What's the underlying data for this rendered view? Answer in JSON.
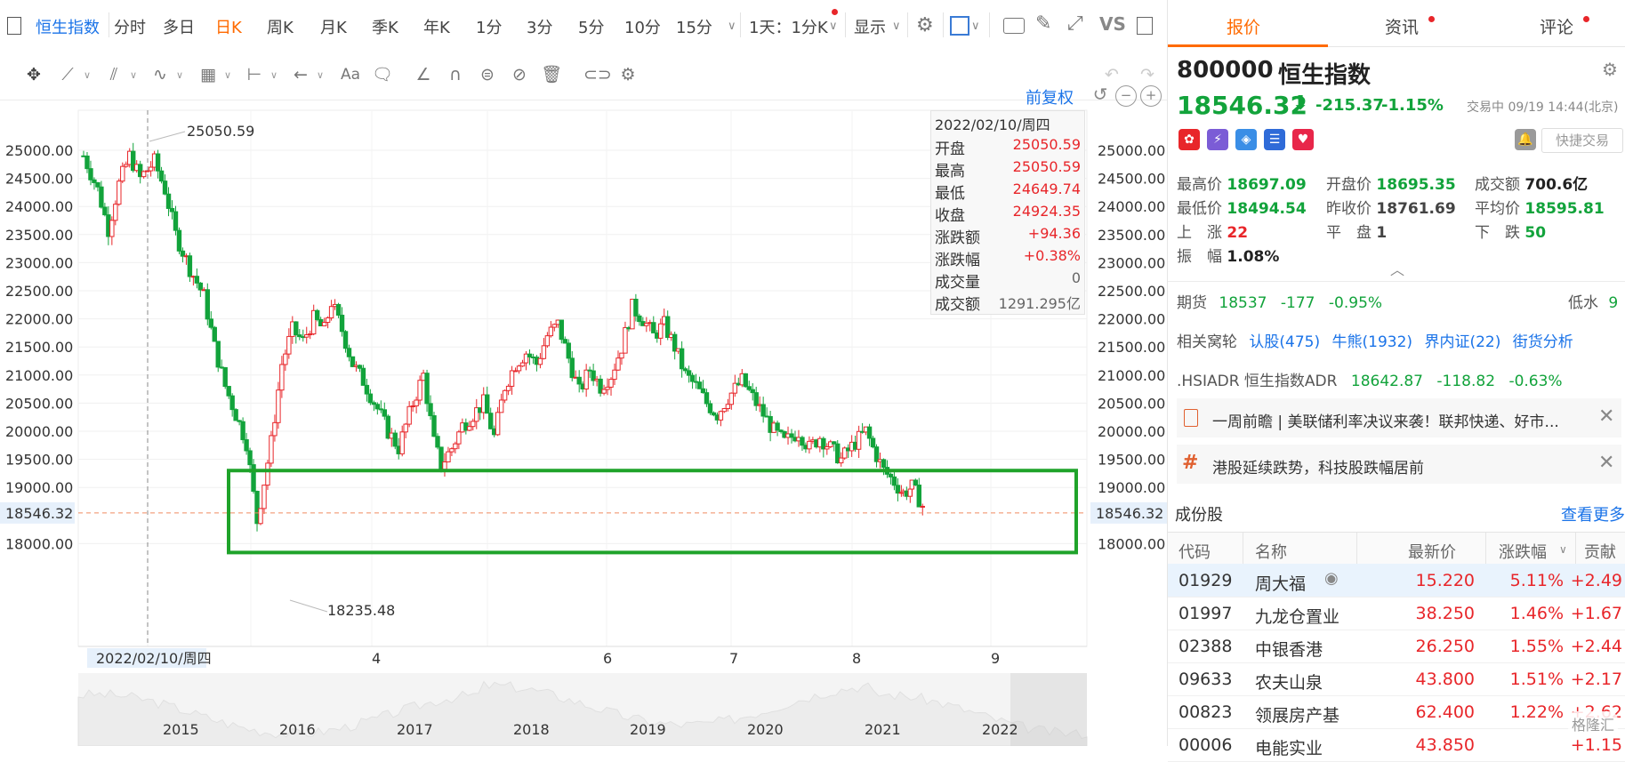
{
  "toolbar": {
    "brand": "恒生指数",
    "periods": [
      "分时",
      "多日",
      "日K",
      "周K",
      "月K",
      "季K",
      "年K",
      "1分",
      "3分",
      "5分",
      "10分",
      "15分"
    ],
    "selected": "日K",
    "multi": "1天：1分K",
    "display": "显示",
    "vs": "VS"
  },
  "drawbar": {
    "text_tool": "Aa"
  },
  "chart": {
    "fuquan": "前复权",
    "y_ticks": [
      "25000.00",
      "24500.00",
      "24000.00",
      "23500.00",
      "23000.00",
      "22500.00",
      "22000.00",
      "21500.00",
      "21000.00",
      "20500.00",
      "20000.00",
      "19500.00",
      "19000.00",
      "18000.00"
    ],
    "current_price_label": "18546.32",
    "high_label": "25050.59",
    "low_label": "18235.48",
    "x_ticks": [
      "4",
      "6",
      "7",
      "8",
      "9"
    ],
    "crosshair_date": "2022/02/10/周四",
    "mini_years": [
      "2015",
      "2016",
      "2017",
      "2018",
      "2019",
      "2020",
      "2021",
      "2022"
    ],
    "colors": {
      "up": "#e8262a",
      "down": "#12a33b",
      "box": "#1fa32a"
    }
  },
  "chart_data": {
    "type": "candlestick",
    "title": "恒生指数",
    "ylim": [
      17700,
      25300
    ],
    "x_ticks": [
      "4",
      "6",
      "7",
      "8",
      "9"
    ],
    "last_price": 18546.32,
    "period_high": 25050.59,
    "period_low": 18235.48,
    "range_box": [
      18000,
      19300
    ]
  },
  "infobox": {
    "date": "2022/02/10/周四",
    "rows": [
      {
        "k": "开盘",
        "v": "25050.59"
      },
      {
        "k": "最高",
        "v": "25050.59"
      },
      {
        "k": "最低",
        "v": "24649.74"
      },
      {
        "k": "收盘",
        "v": "24924.35"
      },
      {
        "k": "涨跌额",
        "v": "+94.36"
      },
      {
        "k": "涨跌幅",
        "v": "+0.38%"
      },
      {
        "k": "成交量",
        "v": "0"
      },
      {
        "k": "成交额",
        "v": "1291.295亿"
      }
    ]
  },
  "panel": {
    "tabs": [
      "报价",
      "资讯",
      "评论"
    ],
    "code": "800000",
    "name": "恒生指数",
    "price": "18546.32",
    "arrow": "⬇",
    "change": "-215.37",
    "change_pct": "-1.15%",
    "status": "交易中 09/19 14:44(北京)",
    "quick_trade": "快捷交易",
    "stats": [
      {
        "k": "最高价",
        "v": "18697.09",
        "c": "green"
      },
      {
        "k": "开盘价",
        "v": "18695.35",
        "c": "green"
      },
      {
        "k": "成交额",
        "v": "700.6亿",
        "c": "dark"
      },
      {
        "k": "最低价",
        "v": "18494.54",
        "c": "green"
      },
      {
        "k": "昨收价",
        "v": "18761.69",
        "c": "dark"
      },
      {
        "k": "平均价",
        "v": "18595.81",
        "c": "green"
      },
      {
        "k": "上　涨",
        "v": "22",
        "c": "red"
      },
      {
        "k": "平　盘",
        "v": "1",
        "c": "dark"
      },
      {
        "k": "下　跌",
        "v": "50",
        "c": "green"
      },
      {
        "k": "振　幅",
        "v": "1.08%",
        "c": "dark"
      }
    ],
    "futures": {
      "label": "期货",
      "price": "18537",
      "chg": "-177",
      "pct": "-0.95%",
      "discount_label": "低水",
      "discount": "9"
    },
    "warrants": {
      "label": "相关窝轮",
      "items": [
        "认股(475)",
        "牛熊(1932)",
        "界内证(22)",
        "街货分析"
      ]
    },
    "adr": {
      "label": ".HSIADR 恒生指数ADR",
      "price": "18642.87",
      "chg": "-118.82",
      "pct": "-0.63%"
    },
    "news": [
      "一周前瞻 | 美联储利率决议来袭！联邦快递、好市...",
      "港股延续跌势，科技股跌幅居前"
    ],
    "components": {
      "title": "成份股",
      "more": "查看更多",
      "headers": [
        "代码",
        "名称",
        "最新价",
        "涨跌幅",
        "贡献"
      ],
      "rows": [
        {
          "code": "01929",
          "name": "周大福",
          "price": "15.220",
          "pct": "5.11%",
          "contrib": "+2.49"
        },
        {
          "code": "01997",
          "name": "九龙仓置业",
          "price": "38.250",
          "pct": "1.46%",
          "contrib": "+1.67"
        },
        {
          "code": "02388",
          "name": "中银香港",
          "price": "26.250",
          "pct": "1.55%",
          "contrib": "+2.44"
        },
        {
          "code": "09633",
          "name": "农夫山泉",
          "price": "43.800",
          "pct": "1.51%",
          "contrib": "+2.17"
        },
        {
          "code": "00823",
          "name": "领展房产基",
          "price": "62.400",
          "pct": "1.22%",
          "contrib": "+2.62"
        },
        {
          "code": "00006",
          "name": "电能实业",
          "price": "43.850",
          "pct": "",
          "contrib": "+1.15"
        }
      ]
    },
    "watermark": "格隆汇"
  }
}
